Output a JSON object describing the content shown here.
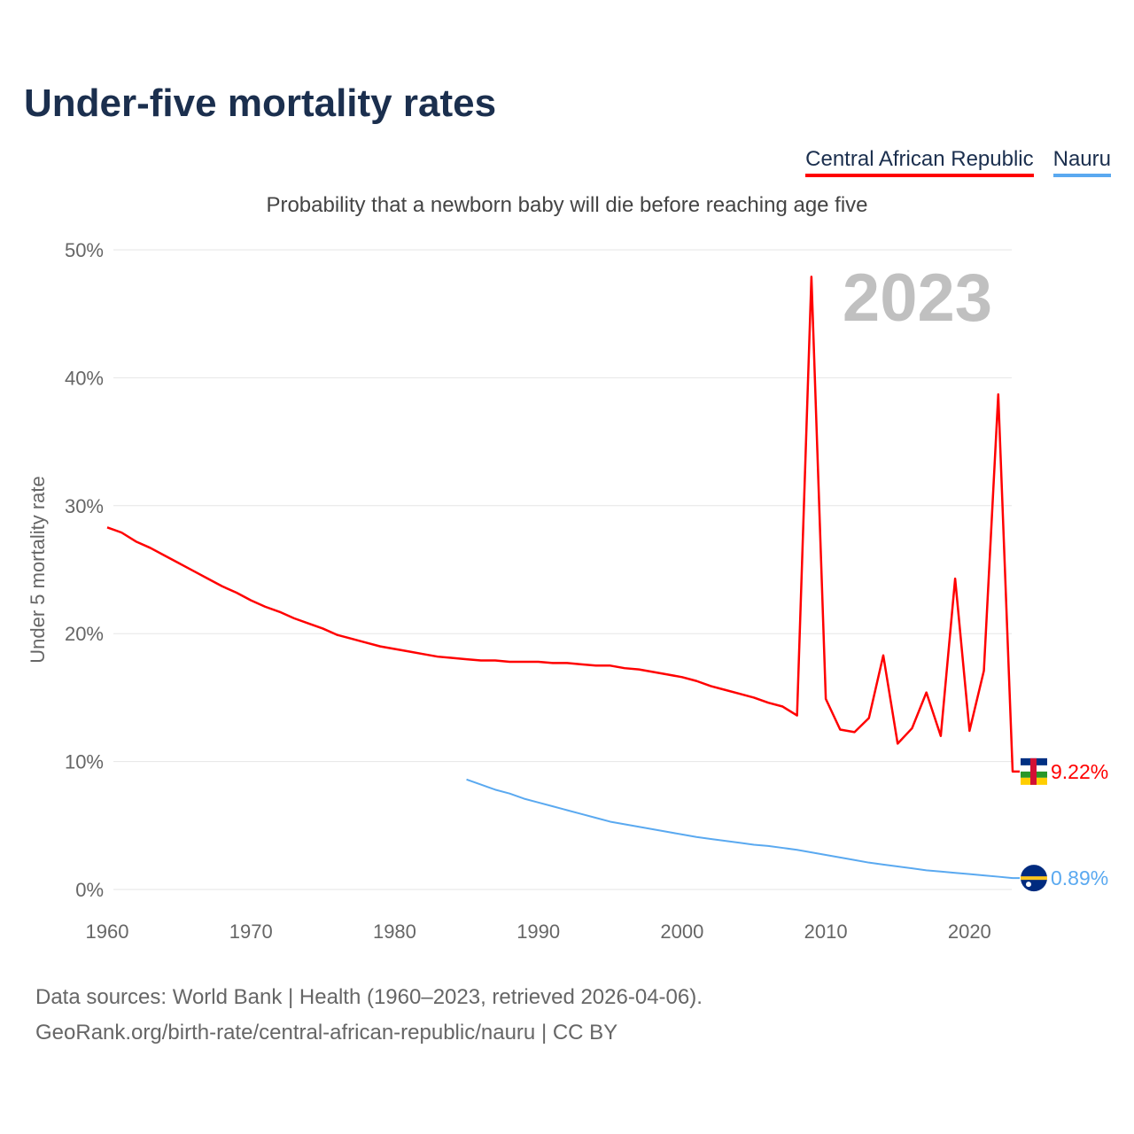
{
  "title": "Under-five mortality rates",
  "subtitle": "Probability that a newborn baby will die before reaching age five",
  "source_line1": "Data sources: World Bank | Health (1960–2023, retrieved 2026-04-06).",
  "source_line2": "GeoRank.org/birth-rate/central-african-republic/nauru | CC BY",
  "chart_data": {
    "type": "line",
    "title": "Under-five mortality rates",
    "ylabel": "Under 5 mortality rate",
    "xlabel": "",
    "ylim": [
      0,
      50
    ],
    "xlim": [
      1960,
      2023
    ],
    "yticks": [
      "0%",
      "10%",
      "20%",
      "30%",
      "40%",
      "50%"
    ],
    "xticks": [
      "1960",
      "1970",
      "1980",
      "1990",
      "2000",
      "2010",
      "2020"
    ],
    "year_label": "2023",
    "grid": true,
    "legend_position": "top-right",
    "series": [
      {
        "name": "Central African Republic",
        "color": "#ff0000",
        "end_label": "9.22%",
        "start": 1960,
        "values": [
          28.3,
          27.9,
          27.2,
          26.7,
          26.1,
          25.5,
          24.9,
          24.3,
          23.7,
          23.2,
          22.6,
          22.1,
          21.7,
          21.2,
          20.8,
          20.4,
          19.9,
          19.6,
          19.3,
          19.0,
          18.8,
          18.6,
          18.4,
          18.2,
          18.1,
          18.0,
          17.9,
          17.9,
          17.8,
          17.8,
          17.8,
          17.7,
          17.7,
          17.6,
          17.5,
          17.5,
          17.3,
          17.2,
          17.0,
          16.8,
          16.6,
          16.3,
          15.9,
          15.6,
          15.3,
          15.0,
          14.6,
          14.3,
          13.6,
          47.9,
          14.9,
          12.5,
          12.3,
          13.4,
          18.3,
          11.4,
          12.6,
          15.4,
          12.0,
          24.3,
          12.4,
          17.1,
          38.7,
          9.22
        ]
      },
      {
        "name": "Nauru",
        "color": "#5aa9f0",
        "end_label": "0.89%",
        "start": 1985,
        "values": [
          8.6,
          8.2,
          7.8,
          7.5,
          7.1,
          6.8,
          6.5,
          6.2,
          5.9,
          5.6,
          5.3,
          5.1,
          4.9,
          4.7,
          4.5,
          4.3,
          4.1,
          3.95,
          3.8,
          3.65,
          3.5,
          3.4,
          3.25,
          3.1,
          2.9,
          2.7,
          2.5,
          2.3,
          2.1,
          1.95,
          1.8,
          1.65,
          1.5,
          1.4,
          1.3,
          1.2,
          1.1,
          1.0,
          0.89
        ]
      }
    ]
  }
}
